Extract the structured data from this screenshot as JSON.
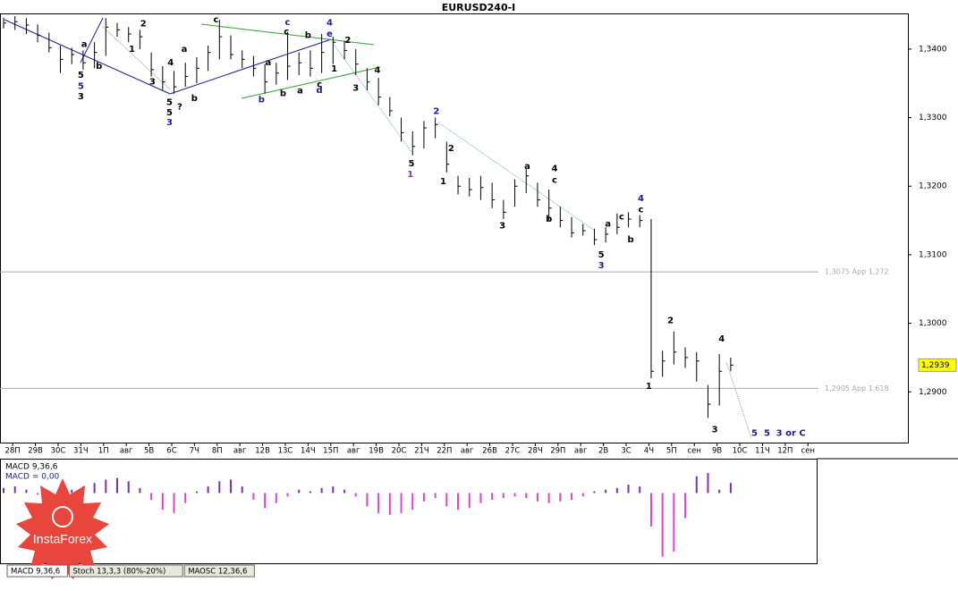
{
  "chart_data": [
    {
      "type": "ohlc",
      "title": "EURUSD240-I",
      "color": "#000000",
      "close": [
        1.3438,
        1.344,
        1.3435,
        1.342,
        1.3402,
        1.3385,
        1.3392,
        1.338,
        1.3395,
        1.3432,
        1.3428,
        1.3422,
        1.3418,
        1.337,
        1.3352,
        1.3345,
        1.336,
        1.3372,
        1.3395,
        1.3418,
        1.3392,
        1.3385,
        1.3372,
        1.3352,
        1.3365,
        1.3375,
        1.338,
        1.3372,
        1.3395,
        1.341,
        1.3398,
        1.3378,
        1.3352,
        1.333,
        1.331,
        1.3278,
        1.3258,
        1.3285,
        1.329,
        1.3232,
        1.32,
        1.3195,
        1.3198,
        1.318,
        1.3162,
        1.32,
        1.3215,
        1.318,
        1.3168,
        1.315,
        1.3132,
        1.3135,
        1.3122,
        1.313,
        1.314,
        1.3152,
        1.315,
        1.293,
        1.2945,
        1.2958,
        1.295,
        1.2945,
        1.2882,
        1.293,
        1.2939
      ],
      "high": [
        1.3446,
        1.3448,
        1.3445,
        1.3436,
        1.3424,
        1.3405,
        1.3402,
        1.3398,
        1.341,
        1.3445,
        1.3438,
        1.3432,
        1.3428,
        1.3395,
        1.3375,
        1.3368,
        1.338,
        1.3388,
        1.3405,
        1.3443,
        1.342,
        1.3398,
        1.339,
        1.3378,
        1.338,
        1.3425,
        1.3395,
        1.3398,
        1.3422,
        1.3418,
        1.3412,
        1.34,
        1.3372,
        1.3358,
        1.333,
        1.33,
        1.328,
        1.3295,
        1.33,
        1.3265,
        1.3215,
        1.3212,
        1.3215,
        1.3205,
        1.318,
        1.321,
        1.3225,
        1.3205,
        1.3195,
        1.317,
        1.3155,
        1.3145,
        1.3138,
        1.314,
        1.316,
        1.3162,
        1.3158,
        1.3152,
        1.296,
        1.2988,
        1.2965,
        1.2958,
        1.291,
        1.2955,
        1.295
      ],
      "low": [
        1.343,
        1.3428,
        1.3422,
        1.341,
        1.3395,
        1.3365,
        1.3378,
        1.337,
        1.3372,
        1.339,
        1.3418,
        1.341,
        1.34,
        1.336,
        1.334,
        1.3335,
        1.3345,
        1.335,
        1.3368,
        1.3385,
        1.3385,
        1.3372,
        1.336,
        1.3335,
        1.3348,
        1.3355,
        1.3362,
        1.336,
        1.3365,
        1.3378,
        1.3385,
        1.3362,
        1.334,
        1.3318,
        1.3302,
        1.3265,
        1.3245,
        1.3255,
        1.327,
        1.322,
        1.3188,
        1.3185,
        1.318,
        1.3168,
        1.3152,
        1.317,
        1.319,
        1.317,
        1.315,
        1.314,
        1.3125,
        1.3128,
        1.3114,
        1.3118,
        1.313,
        1.314,
        1.314,
        1.292,
        1.2922,
        1.294,
        1.2935,
        1.2915,
        1.2862,
        1.288,
        1.293
      ],
      "xlim": [
        -0.315,
        79.6
      ],
      "xticks": [
        {
          "value": 0.8,
          "label": "28П"
        },
        {
          "value": 2.8,
          "label": "29В"
        },
        {
          "value": 4.8,
          "label": "30С"
        },
        {
          "value": 6.8,
          "label": "31Ч"
        },
        {
          "value": 8.8,
          "label": "1П"
        },
        {
          "value": 10.8,
          "label": "авг"
        },
        {
          "value": 12.8,
          "label": "5В"
        },
        {
          "value": 14.8,
          "label": "6С"
        },
        {
          "value": 16.8,
          "label": "7Ч"
        },
        {
          "value": 18.8,
          "label": "8П"
        },
        {
          "value": 20.8,
          "label": "авг"
        },
        {
          "value": 22.8,
          "label": "12В"
        },
        {
          "value": 24.8,
          "label": "13С"
        },
        {
          "value": 26.8,
          "label": "14Ч"
        },
        {
          "value": 28.8,
          "label": "15П"
        },
        {
          "value": 30.8,
          "label": "авг"
        },
        {
          "value": 32.8,
          "label": "19В"
        },
        {
          "value": 34.8,
          "label": "20С"
        },
        {
          "value": 36.8,
          "label": "21Ч"
        },
        {
          "value": 38.8,
          "label": "22П"
        },
        {
          "value": 40.8,
          "label": "авг"
        },
        {
          "value": 42.8,
          "label": "26В"
        },
        {
          "value": 44.8,
          "label": "27С"
        },
        {
          "value": 46.8,
          "label": "28Ч"
        },
        {
          "value": 48.8,
          "label": "29П"
        },
        {
          "value": 50.8,
          "label": "авг"
        },
        {
          "value": 52.8,
          "label": "2В"
        },
        {
          "value": 54.8,
          "label": "3С"
        },
        {
          "value": 56.8,
          "label": "4Ч"
        },
        {
          "value": 58.8,
          "label": "5П"
        },
        {
          "value": 60.8,
          "label": "сен"
        },
        {
          "value": 62.8,
          "label": "9В"
        },
        {
          "value": 64.8,
          "label": "10С"
        },
        {
          "value": 66.8,
          "label": "11Ч"
        },
        {
          "value": 68.8,
          "label": "12П"
        },
        {
          "value": 70.8,
          "label": "сен"
        }
      ],
      "ylim": [
        1.2826,
        1.3452
      ],
      "yticks": [
        {
          "value": 1.34,
          "label": "1,3400"
        },
        {
          "value": 1.33,
          "label": "1,3300"
        },
        {
          "value": 1.32,
          "label": "1,3200"
        },
        {
          "value": 1.31,
          "label": "1,3100"
        },
        {
          "value": 1.3,
          "label": "1,3000"
        },
        {
          "value": 1.29,
          "label": "1,2900"
        }
      ],
      "levels": [
        {
          "value": 1.3075,
          "label": "1,3075 App 1,272"
        },
        {
          "value": 1.2905,
          "label": "1,2905 App 1,618"
        }
      ],
      "last_price": {
        "value": 1.2939,
        "label": "1,2939"
      },
      "annotations": [
        {
          "text": "5",
          "x": 6.8,
          "y": 1.3362,
          "color": "#000000"
        },
        {
          "text": "5",
          "x": 6.8,
          "y": 1.3346,
          "color": "#1a1aa6"
        },
        {
          "text": "3",
          "x": 6.8,
          "y": 1.3331,
          "color": "#000000"
        },
        {
          "text": "a",
          "x": 7.1,
          "y": 1.3407,
          "color": "#000000"
        },
        {
          "text": "b",
          "x": 8.4,
          "y": 1.3375,
          "color": "#000000"
        },
        {
          "text": "2",
          "x": 12.3,
          "y": 1.3437,
          "color": "#000000"
        },
        {
          "text": "1",
          "x": 11.3,
          "y": 1.34,
          "color": "#000000"
        },
        {
          "text": "4",
          "x": 14.7,
          "y": 1.338,
          "color": "#000000"
        },
        {
          "text": "3",
          "x": 13.1,
          "y": 1.3352,
          "color": "#000000"
        },
        {
          "text": "5",
          "x": 14.6,
          "y": 1.3322,
          "color": "#000000"
        },
        {
          "text": "5",
          "x": 14.6,
          "y": 1.3307,
          "color": "#000000"
        },
        {
          "text": "3",
          "x": 14.6,
          "y": 1.3293,
          "color": "#1a1aa6"
        },
        {
          "text": "?",
          "x": 15.5,
          "y": 1.3316,
          "color": "#000000"
        },
        {
          "text": "b",
          "x": 16.8,
          "y": 1.3328,
          "color": "#000000"
        },
        {
          "text": "a",
          "x": 15.9,
          "y": 1.34,
          "color": "#000000"
        },
        {
          "text": "c",
          "x": 18.7,
          "y": 1.3443,
          "color": "#000000"
        },
        {
          "text": "c",
          "x": 25.0,
          "y": 1.3439,
          "color": "#1a1aa6"
        },
        {
          "text": "c",
          "x": 24.9,
          "y": 1.3425,
          "color": "#000000"
        },
        {
          "text": "a",
          "x": 23.3,
          "y": 1.338,
          "color": "#000000"
        },
        {
          "text": "b",
          "x": 22.7,
          "y": 1.3326,
          "color": "#1a1aa6"
        },
        {
          "text": "b",
          "x": 24.6,
          "y": 1.3335,
          "color": "#000000"
        },
        {
          "text": "a",
          "x": 26.1,
          "y": 1.3339,
          "color": "#000000"
        },
        {
          "text": "b",
          "x": 26.8,
          "y": 1.342,
          "color": "#000000"
        },
        {
          "text": "d",
          "x": 27.8,
          "y": 1.334,
          "color": "#1a1aa6"
        },
        {
          "text": "c",
          "x": 27.8,
          "y": 1.3348,
          "color": "#000000"
        },
        {
          "text": "4",
          "x": 28.7,
          "y": 1.3438,
          "color": "#1a1aa6"
        },
        {
          "text": "e",
          "x": 28.7,
          "y": 1.3422,
          "color": "#1a1aa6"
        },
        {
          "text": "1",
          "x": 29.1,
          "y": 1.3371,
          "color": "#000000"
        },
        {
          "text": "2",
          "x": 30.3,
          "y": 1.3413,
          "color": "#000000"
        },
        {
          "text": "3",
          "x": 31.0,
          "y": 1.3343,
          "color": "#000000"
        },
        {
          "text": "4",
          "x": 32.9,
          "y": 1.3369,
          "color": "#000000"
        },
        {
          "text": "5",
          "x": 35.9,
          "y": 1.3233,
          "color": "#000000"
        },
        {
          "text": "1",
          "x": 35.8,
          "y": 1.3217,
          "color": "#8a2be2"
        },
        {
          "text": "2",
          "x": 38.1,
          "y": 1.3309,
          "color": "#1a1aa6"
        },
        {
          "text": "2",
          "x": 39.4,
          "y": 1.3255,
          "color": "#000000"
        },
        {
          "text": "1",
          "x": 38.7,
          "y": 1.3207,
          "color": "#000000"
        },
        {
          "text": "a",
          "x": 46.1,
          "y": 1.3229,
          "color": "#000000"
        },
        {
          "text": "4",
          "x": 48.5,
          "y": 1.3226,
          "color": "#000000"
        },
        {
          "text": "c",
          "x": 48.5,
          "y": 1.3209,
          "color": "#000000"
        },
        {
          "text": "3",
          "x": 43.9,
          "y": 1.3142,
          "color": "#000000"
        },
        {
          "text": "b",
          "x": 48.0,
          "y": 1.3152,
          "color": "#000000"
        },
        {
          "text": "a",
          "x": 53.2,
          "y": 1.3145,
          "color": "#000000"
        },
        {
          "text": "c",
          "x": 54.4,
          "y": 1.3155,
          "color": "#000000"
        },
        {
          "text": "b",
          "x": 55.2,
          "y": 1.3122,
          "color": "#000000"
        },
        {
          "text": "5",
          "x": 52.6,
          "y": 1.31,
          "color": "#000000"
        },
        {
          "text": "3",
          "x": 52.6,
          "y": 1.3084,
          "color": "#1a1aa6"
        },
        {
          "text": "4",
          "x": 56.1,
          "y": 1.3182,
          "color": "#1a1aa6"
        },
        {
          "text": "c",
          "x": 56.1,
          "y": 1.3166,
          "color": "#000000"
        },
        {
          "text": "2",
          "x": 58.7,
          "y": 1.3004,
          "color": "#000000"
        },
        {
          "text": "1",
          "x": 56.8,
          "y": 1.2908,
          "color": "#000000"
        },
        {
          "text": "4",
          "x": 63.2,
          "y": 1.2977,
          "color": "#000000"
        },
        {
          "text": "3",
          "x": 62.6,
          "y": 1.2845,
          "color": "#000000"
        },
        {
          "text": "5",
          "x": 66.1,
          "y": 1.284,
          "color": "#1a1aa6"
        },
        {
          "text": "5",
          "x": 67.2,
          "y": 1.284,
          "color": "#1a1aa6"
        },
        {
          "text": "3 or C",
          "x": 69.3,
          "y": 1.284,
          "color": "#1a1aa6"
        }
      ]
    },
    {
      "type": "bar",
      "label": "MACD 9,36,6",
      "value_text": "MACD = 0,00",
      "color_up": "#7b2fbe",
      "color_down": "#e040e0",
      "ylim": [
        -0.0042,
        0.002
      ],
      "values": [
        0.0003,
        0.0004,
        0.0002,
        -0.0001,
        -0.0003,
        -0.0002,
        0.0002,
        0.0004,
        0.0006,
        0.0008,
        0.0009,
        0.0007,
        0.0003,
        -0.0004,
        -0.001,
        -0.0012,
        -0.0006,
        0.0001,
        0.0004,
        0.0007,
        0.0008,
        0.0004,
        -0.0004,
        -0.0009,
        -0.0006,
        -0.0002,
        0.0002,
        0.0001,
        0.0003,
        0.0004,
        0.0002,
        -0.0002,
        -0.0008,
        -0.0012,
        -0.0013,
        -0.0012,
        -0.001,
        -0.0005,
        -0.0003,
        -0.0008,
        -0.001,
        -0.0009,
        -0.0006,
        -0.0004,
        -0.0003,
        -0.0002,
        -0.0003,
        -0.0005,
        -0.0006,
        -0.0005,
        -0.0004,
        -0.0002,
        0.0001,
        0.0002,
        0.0003,
        0.0005,
        0.0004,
        -0.002,
        -0.0038,
        -0.0035,
        -0.0015,
        0.001,
        0.0012,
        0.0002,
        0.0006
      ]
    }
  ],
  "tabs": [
    "MACD 9,36,6",
    "Stoch 13,3,3 (80%-20%)",
    "MAOSC 12,36,6"
  ],
  "watermark": "InstaForex"
}
